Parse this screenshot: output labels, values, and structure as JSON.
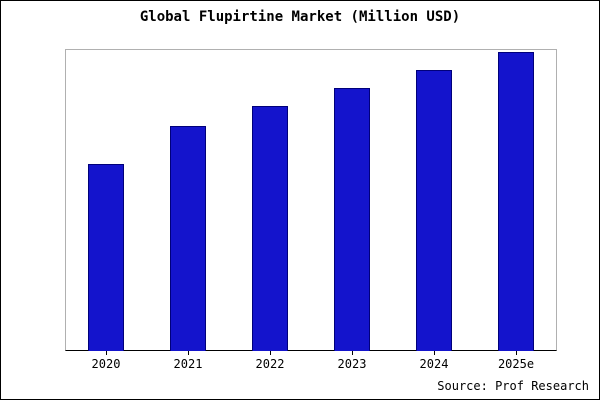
{
  "chart_data": {
    "type": "bar",
    "title": "Global Flupirtine Market (Million USD)",
    "categories": [
      "2020",
      "2021",
      "2022",
      "2023",
      "2024",
      "2025e"
    ],
    "values": [
      62.5,
      75.2,
      82.0,
      88.0,
      94.0,
      100.0
    ],
    "xlabel": "",
    "ylabel": "",
    "ylim": [
      0,
      101
    ],
    "grid": false,
    "legend": "none",
    "bar_color": "#1414cc",
    "bar_border_color": "#00007a"
  },
  "source": {
    "label": "Source: Prof Research"
  }
}
